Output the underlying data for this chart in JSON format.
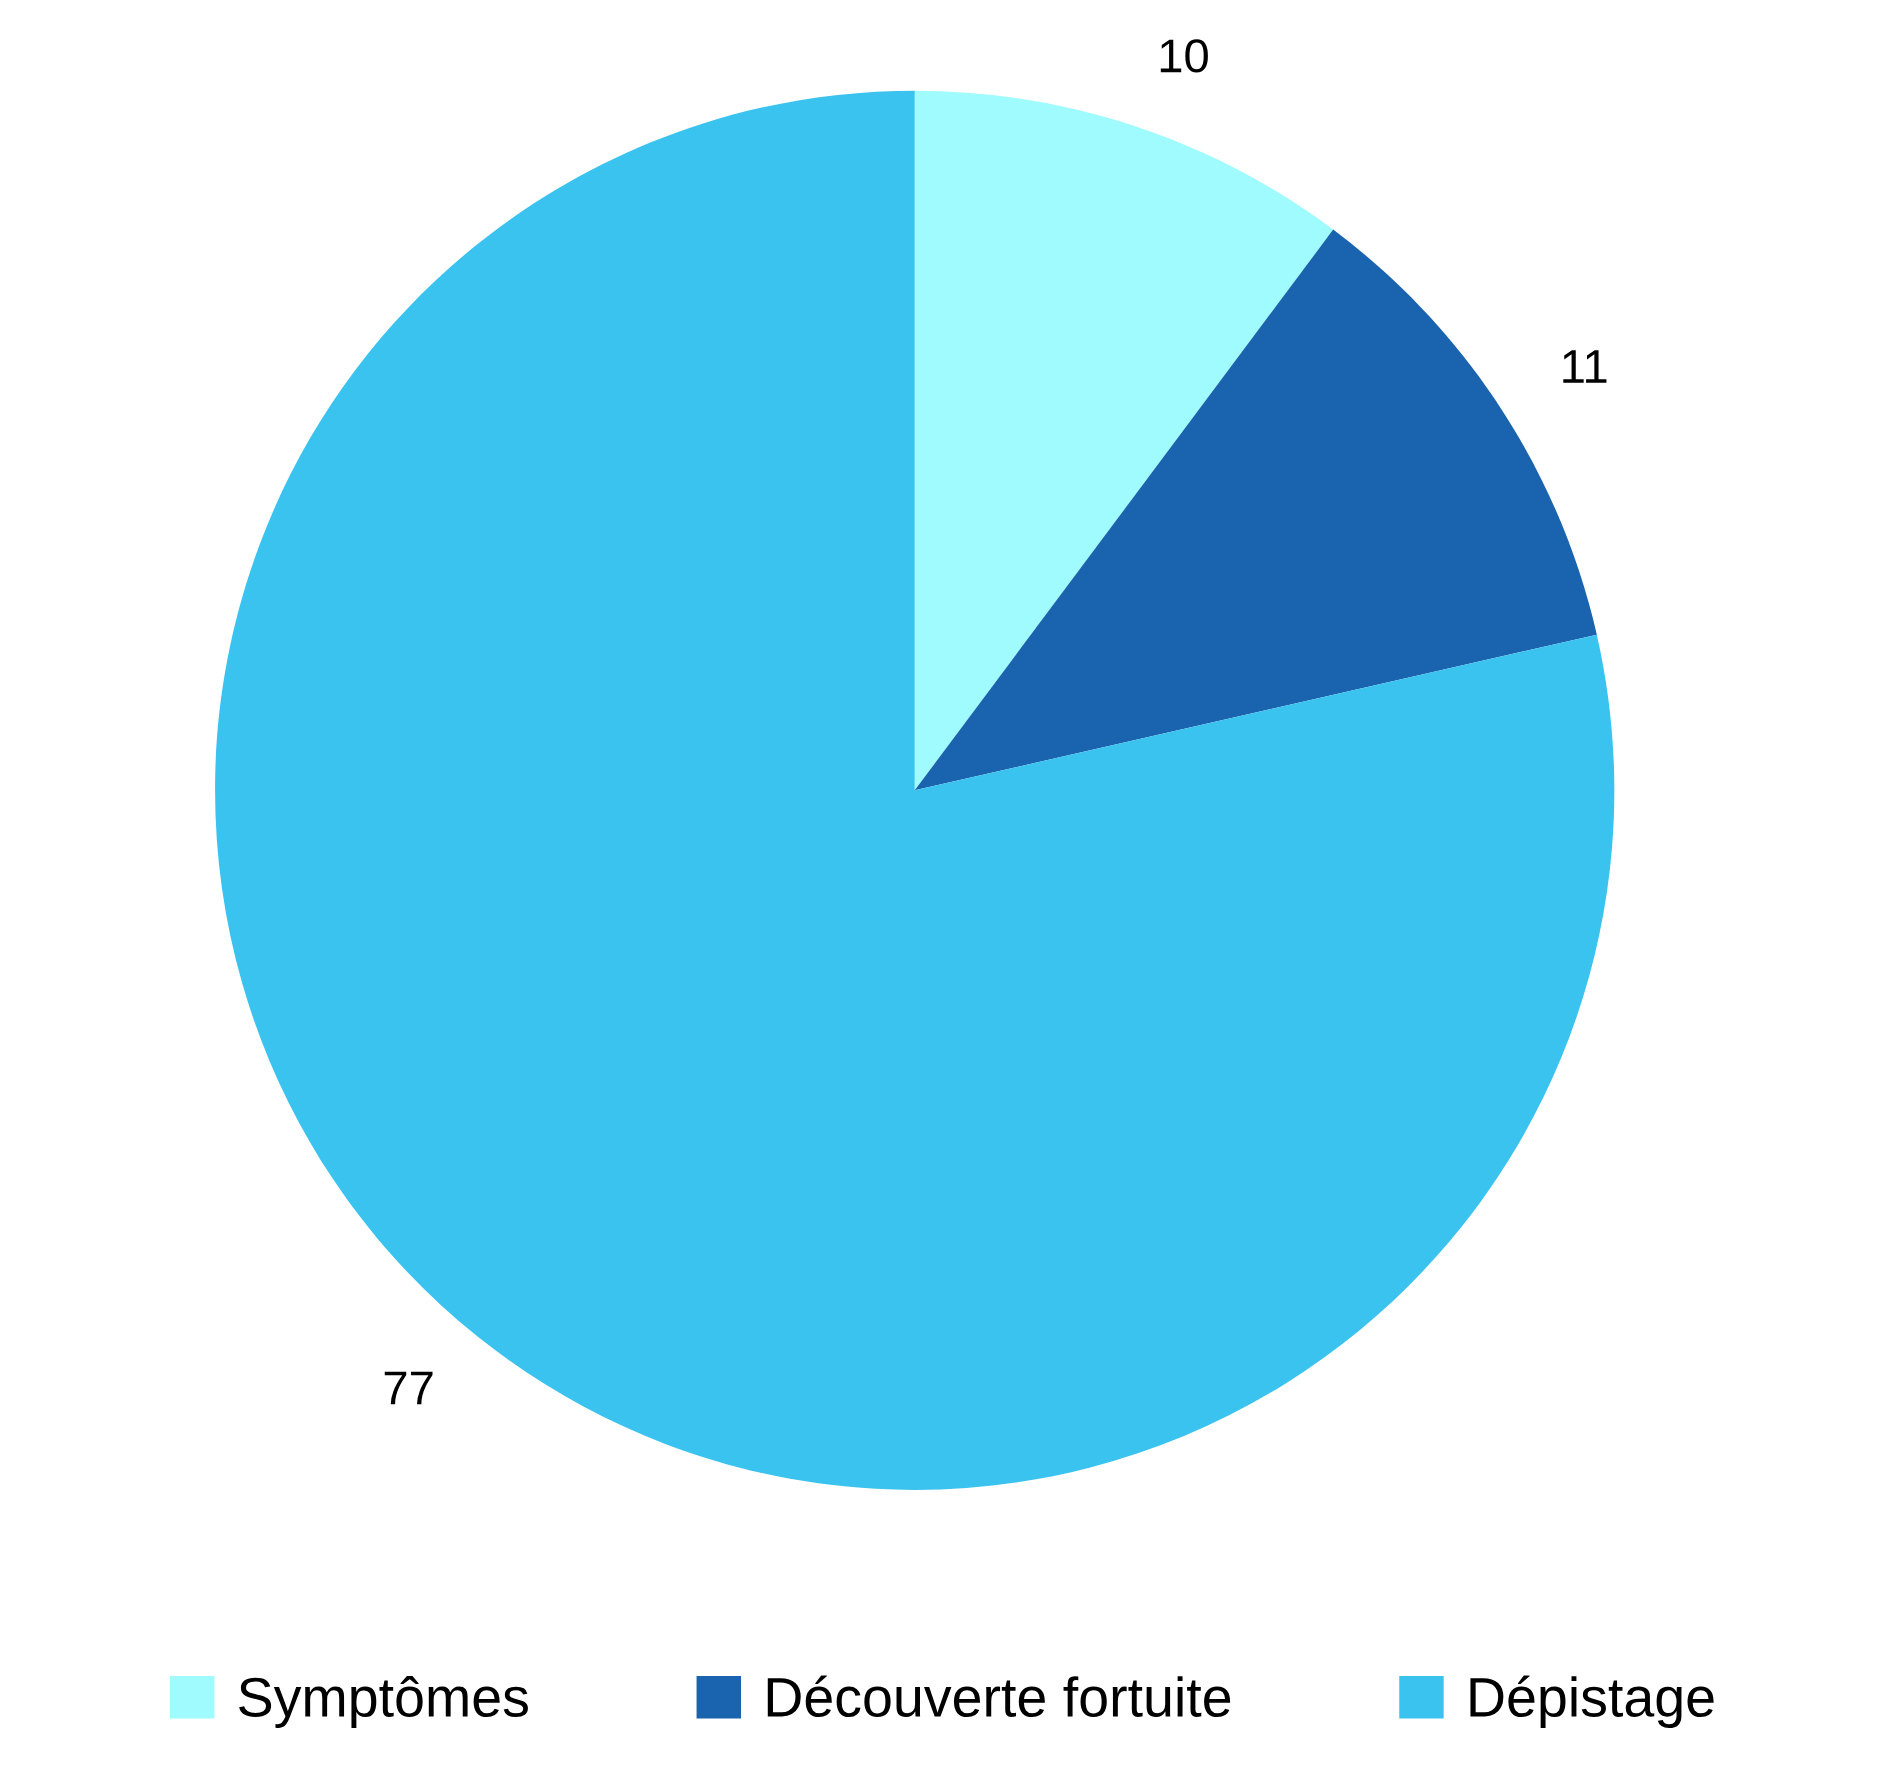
{
  "chart_data": {
    "type": "pie",
    "categories": [
      "Symptômes",
      "Découverte fortuite",
      "Dépistage"
    ],
    "values": [
      10,
      11,
      77
    ],
    "colors": [
      "#9ffbfd",
      "#1a63ae",
      "#3bc3f0"
    ],
    "data_labels": true,
    "legend": "bottom"
  }
}
